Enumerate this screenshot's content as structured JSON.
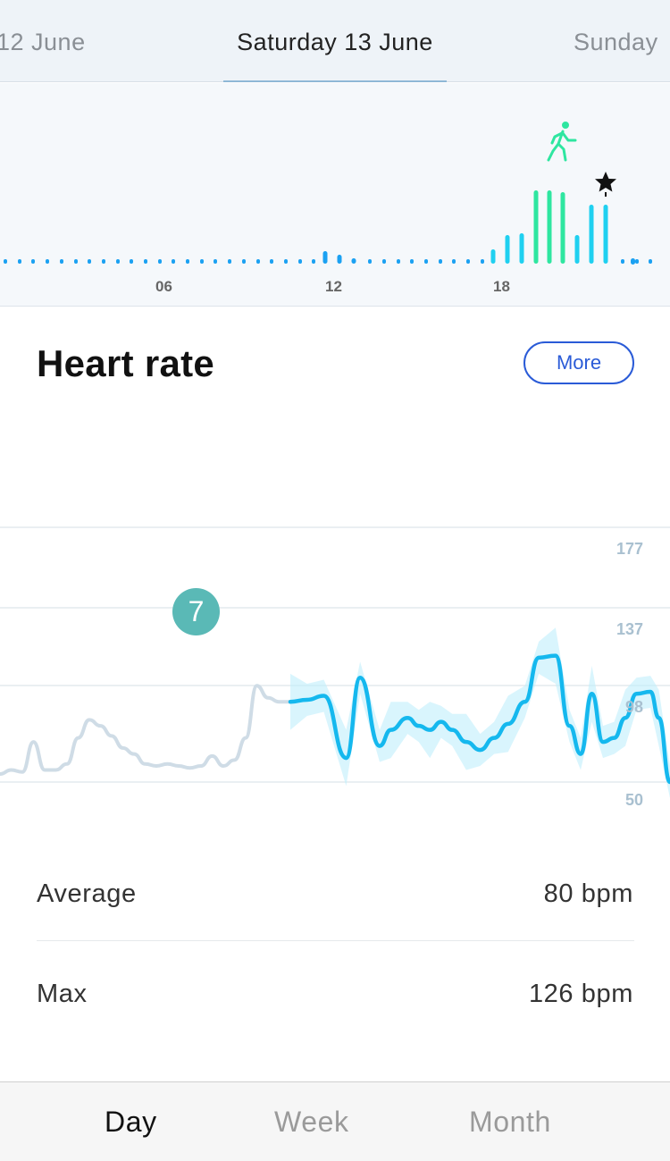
{
  "header": {
    "prev_date": "12 June",
    "current_date": "Saturday 13 June",
    "next_date": "Sunday"
  },
  "activity": {
    "hour_labels": [
      "06",
      "12",
      "18"
    ],
    "walk_icon": "walking-person-icon",
    "star_icon": "star-icon",
    "colors": {
      "steps": "#1ba1f2",
      "active": "#2ee6a0",
      "bars": "#1fd0f0"
    }
  },
  "heart_rate": {
    "title": "Heart rate",
    "more_label": "More",
    "badge_value": "7",
    "colors": {
      "line": "#15b8ee",
      "band": "#bfeefb",
      "past_line": "#cfdce6",
      "grid": "#e4eaee",
      "axis_label": "#a9c0d0"
    },
    "chart_data": {
      "type": "line",
      "y_ticks": [
        "177",
        "137",
        "98",
        "50"
      ],
      "ylim": [
        50,
        177
      ],
      "xlim": [
        0,
        24
      ],
      "series": [
        {
          "x": [
            0,
            0.4,
            0.8,
            1.2,
            1.6,
            2.0,
            2.4,
            2.8,
            3.2,
            3.6,
            4.0,
            4.4,
            4.8,
            5.2,
            5.6,
            6.0,
            6.4,
            6.8,
            7.2,
            7.6,
            8.0,
            8.4,
            8.8,
            9.2,
            9.6,
            10.0,
            10.4
          ],
          "y": [
            54,
            56,
            55,
            70,
            56,
            56,
            59,
            72,
            81,
            78,
            73,
            67,
            64,
            59,
            58,
            59,
            58,
            57,
            58,
            63,
            58,
            61,
            72,
            98,
            92,
            90,
            90
          ]
        },
        {
          "x": [
            10.4,
            11.0,
            11.6,
            12.4,
            12.9,
            13.6,
            14.0,
            14.6,
            15.0,
            15.4,
            15.8,
            16.2,
            16.7,
            17.2,
            17.7,
            18.2,
            18.8,
            19.3,
            19.9,
            20.4,
            20.8,
            21.2,
            21.6,
            22.0,
            22.4,
            22.8,
            23.3,
            23.6,
            24.0
          ],
          "y": [
            90,
            91,
            93,
            62,
            102,
            68,
            76,
            82,
            78,
            76,
            80,
            76,
            70,
            66,
            72,
            79,
            90,
            112,
            113,
            78,
            64,
            94,
            70,
            72,
            82,
            94,
            95,
            82,
            50
          ]
        }
      ]
    }
  },
  "stats": {
    "average_label": "Average",
    "average_value": "80 bpm",
    "max_label": "Max",
    "max_value": "126 bpm"
  },
  "tabs": {
    "day": "Day",
    "week": "Week",
    "month": "Month"
  }
}
